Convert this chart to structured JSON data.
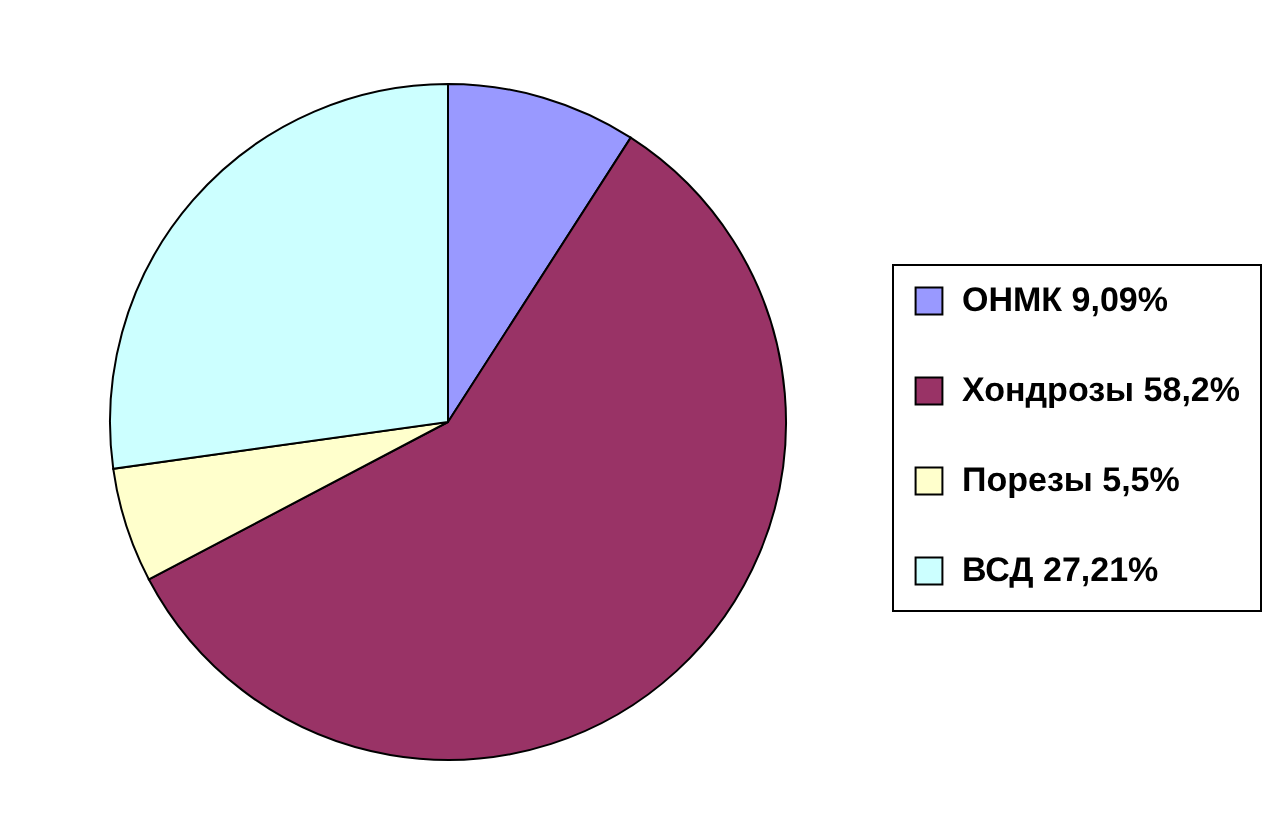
{
  "chart_data": {
    "type": "pie",
    "categories": [
      "ОНМК 9,09%",
      "Хондрозы 58,2%",
      "Порезы 5,5%",
      "ВСД 27,21%"
    ],
    "values": [
      9.09,
      58.2,
      5.5,
      27.21
    ],
    "colors": [
      "#9999ff",
      "#993366",
      "#ffffcc",
      "#ccffff"
    ],
    "legend": "right"
  }
}
